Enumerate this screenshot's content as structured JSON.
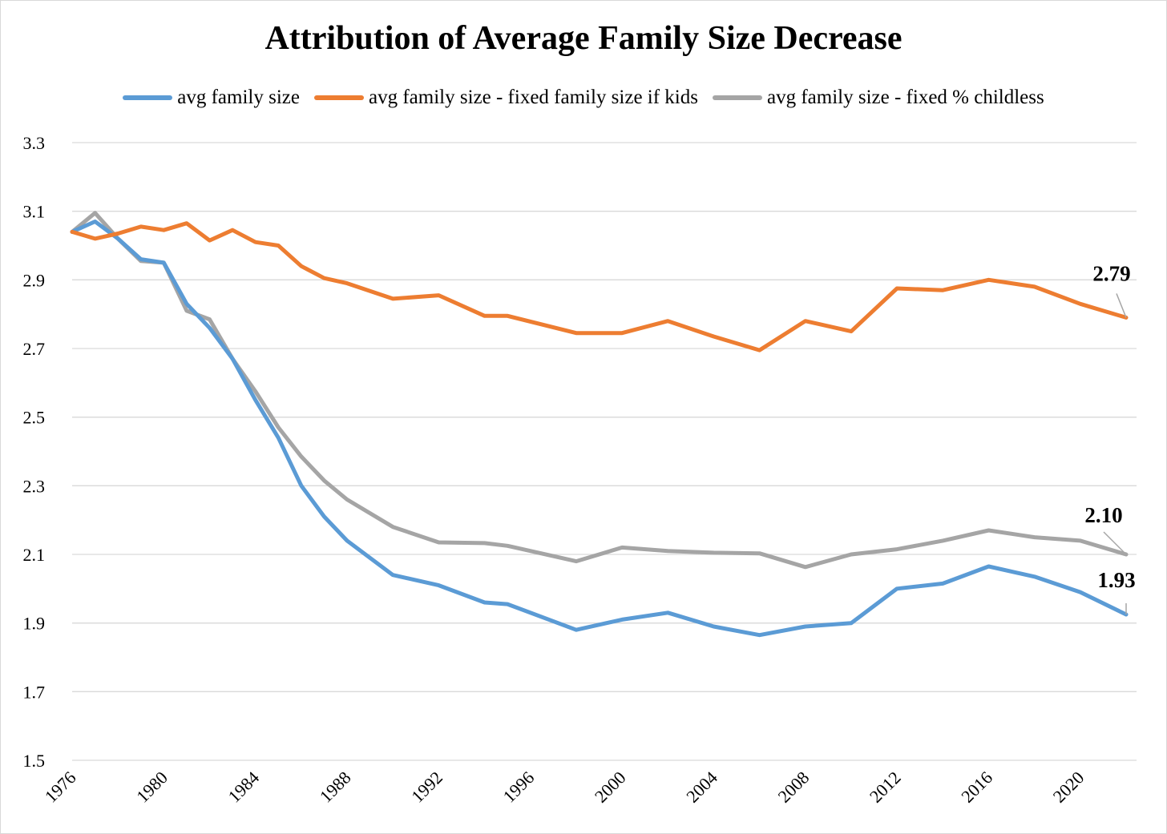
{
  "chart_data": {
    "type": "line",
    "title": "Attribution of Average Family Size Decrease",
    "xlabel": "",
    "ylabel": "",
    "ylim": [
      1.5,
      3.3
    ],
    "yticks": [
      "1.5",
      "1.7",
      "1.9",
      "2.1",
      "2.3",
      "2.5",
      "2.7",
      "2.9",
      "3.1",
      "3.3"
    ],
    "xlim": [
      1976,
      2022
    ],
    "xticks": [
      "1976",
      "1980",
      "1984",
      "1988",
      "1992",
      "1996",
      "2000",
      "2004",
      "2008",
      "2012",
      "2016",
      "2020"
    ],
    "grid": "horizontal",
    "legend_position": "top",
    "series": [
      {
        "name": "avg family size",
        "color": "#5b9bd5",
        "end_label": "1.93",
        "points": [
          [
            1976,
            3.04
          ],
          [
            1977,
            3.07
          ],
          [
            1978,
            3.02
          ],
          [
            1979,
            2.96
          ],
          [
            1980,
            2.95
          ],
          [
            1981,
            2.83
          ],
          [
            1982,
            2.76
          ],
          [
            1983,
            2.67
          ],
          [
            1984,
            2.55
          ],
          [
            1985,
            2.44
          ],
          [
            1986,
            2.3
          ],
          [
            1987,
            2.21
          ],
          [
            1988,
            2.14
          ],
          [
            1990,
            2.04
          ],
          [
            1992,
            2.01
          ],
          [
            1994,
            1.96
          ],
          [
            1995,
            1.955
          ],
          [
            1998,
            1.88
          ],
          [
            2000,
            1.91
          ],
          [
            2002,
            1.93
          ],
          [
            2004,
            1.89
          ],
          [
            2006,
            1.865
          ],
          [
            2008,
            1.89
          ],
          [
            2010,
            1.9
          ],
          [
            2012,
            2.0
          ],
          [
            2014,
            2.015
          ],
          [
            2016,
            2.065
          ],
          [
            2018,
            2.035
          ],
          [
            2020,
            1.99
          ],
          [
            2022,
            1.925
          ]
        ]
      },
      {
        "name": "avg family size - fixed family size if kids",
        "color": "#ed7d31",
        "end_label": "2.79",
        "points": [
          [
            1976,
            3.04
          ],
          [
            1977,
            3.02
          ],
          [
            1978,
            3.035
          ],
          [
            1979,
            3.055
          ],
          [
            1980,
            3.045
          ],
          [
            1981,
            3.065
          ],
          [
            1982,
            3.015
          ],
          [
            1983,
            3.045
          ],
          [
            1984,
            3.01
          ],
          [
            1985,
            3.0
          ],
          [
            1986,
            2.94
          ],
          [
            1987,
            2.905
          ],
          [
            1988,
            2.89
          ],
          [
            1990,
            2.845
          ],
          [
            1992,
            2.855
          ],
          [
            1994,
            2.795
          ],
          [
            1995,
            2.795
          ],
          [
            1998,
            2.745
          ],
          [
            2000,
            2.745
          ],
          [
            2002,
            2.78
          ],
          [
            2004,
            2.735
          ],
          [
            2006,
            2.695
          ],
          [
            2008,
            2.78
          ],
          [
            2010,
            2.75
          ],
          [
            2012,
            2.875
          ],
          [
            2014,
            2.87
          ],
          [
            2016,
            2.9
          ],
          [
            2018,
            2.88
          ],
          [
            2020,
            2.83
          ],
          [
            2022,
            2.79
          ]
        ]
      },
      {
        "name": "avg family size - fixed % childless",
        "color": "#a5a5a5",
        "end_label": "2.10",
        "points": [
          [
            1976,
            3.04
          ],
          [
            1977,
            3.095
          ],
          [
            1978,
            3.02
          ],
          [
            1979,
            2.955
          ],
          [
            1980,
            2.95
          ],
          [
            1981,
            2.81
          ],
          [
            1982,
            2.785
          ],
          [
            1983,
            2.67
          ],
          [
            1984,
            2.575
          ],
          [
            1985,
            2.47
          ],
          [
            1986,
            2.385
          ],
          [
            1987,
            2.315
          ],
          [
            1988,
            2.26
          ],
          [
            1990,
            2.18
          ],
          [
            1992,
            2.135
          ],
          [
            1994,
            2.133
          ],
          [
            1995,
            2.125
          ],
          [
            1998,
            2.08
          ],
          [
            2000,
            2.12
          ],
          [
            2002,
            2.11
          ],
          [
            2004,
            2.105
          ],
          [
            2006,
            2.103
          ],
          [
            2008,
            2.063
          ],
          [
            2010,
            2.1
          ],
          [
            2012,
            2.115
          ],
          [
            2014,
            2.14
          ],
          [
            2016,
            2.17
          ],
          [
            2018,
            2.15
          ],
          [
            2020,
            2.14
          ],
          [
            2022,
            2.1
          ]
        ]
      }
    ]
  }
}
